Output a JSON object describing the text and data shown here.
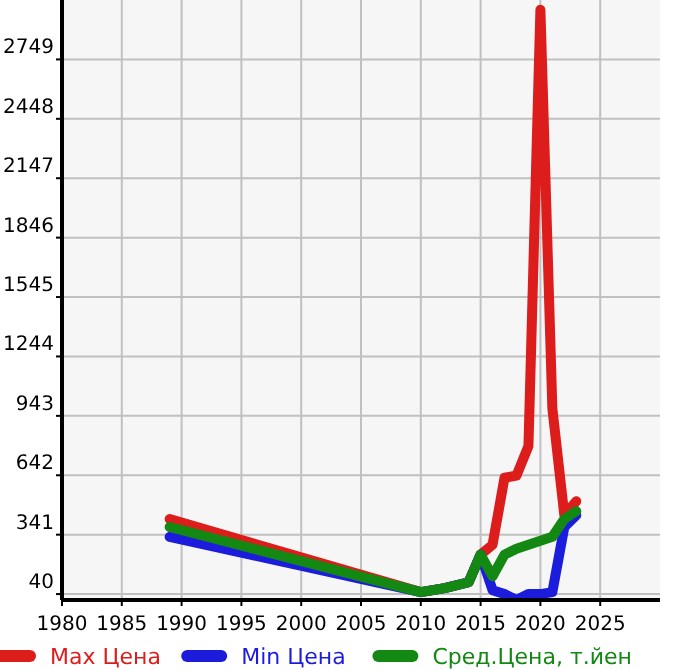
{
  "chart_data": {
    "type": "line",
    "x": [
      1989,
      2010,
      2012,
      2014,
      2015,
      2016,
      2017,
      2018,
      2019,
      2020,
      2021,
      2022,
      2023
    ],
    "series": [
      {
        "name": "Max Цена",
        "color": "#dd1c1c",
        "values": [
          420,
          50,
          70,
          100,
          240,
          290,
          630,
          640,
          790,
          3000,
          980,
          440,
          510
        ]
      },
      {
        "name": "Min Цена",
        "color": "#1c1cdd",
        "values": [
          330,
          50,
          70,
          100,
          240,
          60,
          40,
          10,
          40,
          40,
          50,
          380,
          440
        ]
      },
      {
        "name": "Сред.Цена, т.йен",
        "color": "#138813",
        "values": [
          380,
          50,
          70,
          100,
          240,
          130,
          240,
          270,
          290,
          310,
          330,
          420,
          460
        ]
      }
    ],
    "xlim": [
      1980,
      2030
    ],
    "xticks": [
      1980,
      1985,
      1990,
      1995,
      2000,
      2005,
      2010,
      2015,
      2020,
      2025
    ],
    "ylim": [
      10,
      3050
    ],
    "yticks": [
      40,
      341,
      642,
      943,
      1244,
      1545,
      1846,
      2147,
      2448,
      2749
    ],
    "grid": true,
    "legend": "bottom",
    "marker": "none",
    "line_style": "solid"
  }
}
